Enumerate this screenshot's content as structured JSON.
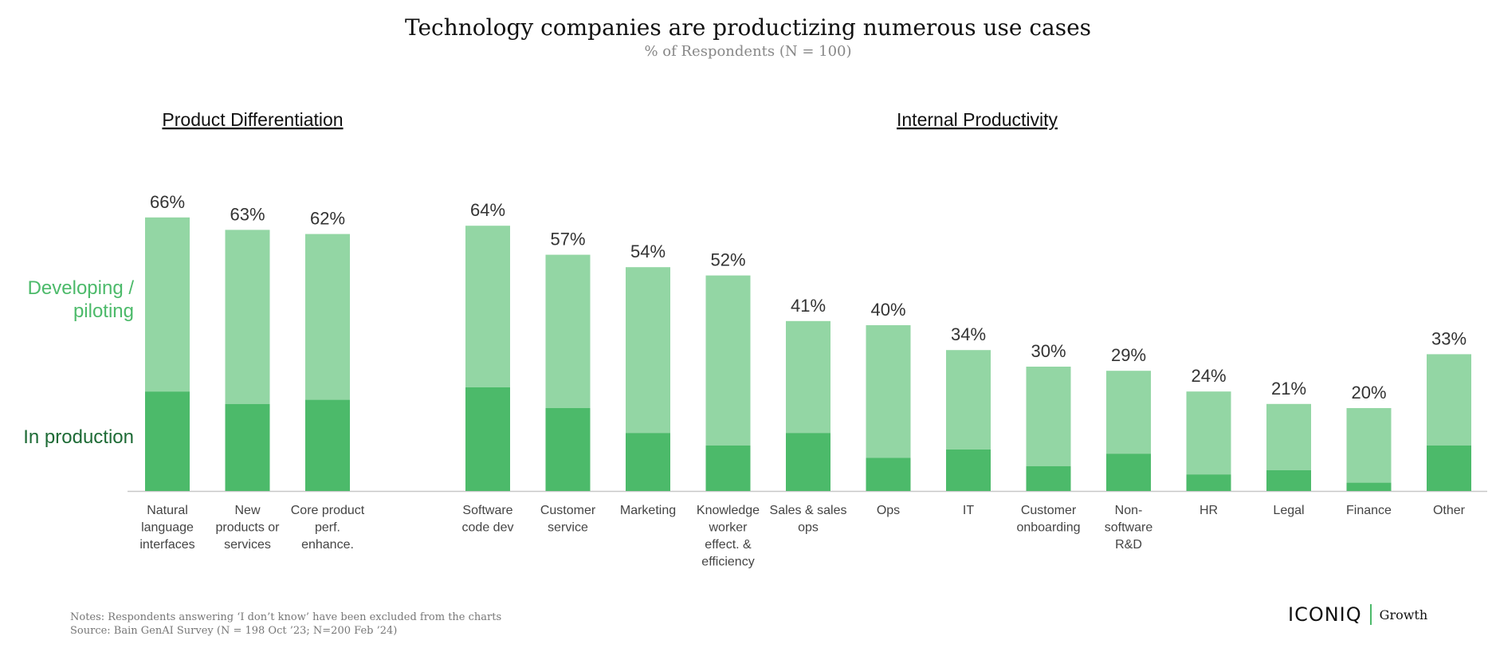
{
  "title": "Technology companies are productizing numerous use cases",
  "subtitle": "% of Respondents (N = 100)",
  "colors": {
    "developing": "#93d6a4",
    "production": "#4cba6a",
    "axis": "#c8c8c8",
    "developing_label": "#4cba6a",
    "production_label": "#1e6b36"
  },
  "legend": {
    "developing": "Developing / piloting",
    "production": "In production"
  },
  "notes": "Notes: Respondents answering ‘I don’t know’ have been excluded from the charts",
  "source": "Source: Bain GenAI Survey (N = 198 Oct ’23; N=200 Feb ’24)",
  "logo": {
    "main": "ICONIQ",
    "sub": "Growth"
  },
  "chart_data": {
    "type": "bar",
    "stacked": true,
    "ylim": [
      0,
      70
    ],
    "groups": [
      {
        "label": "Product Differentiation",
        "categories": [
          [
            "Natural",
            "language",
            "interfaces"
          ],
          [
            "New",
            "products or",
            "services"
          ],
          [
            "Core product",
            "perf.",
            "enhance."
          ]
        ],
        "totals": [
          66,
          63,
          62
        ],
        "production": [
          24,
          21,
          22
        ]
      },
      {
        "label": "Internal Productivity",
        "categories": [
          [
            "Software",
            "code dev"
          ],
          [
            "Customer",
            "service"
          ],
          [
            "Marketing"
          ],
          [
            "Knowledge",
            "worker",
            "effect. &",
            "efficiency"
          ],
          [
            "Sales & sales",
            "ops"
          ],
          [
            "Ops"
          ],
          [
            "IT"
          ],
          [
            "Customer",
            "onboarding"
          ],
          [
            "Non-",
            "software",
            "R&D"
          ],
          [
            "HR"
          ],
          [
            "Legal"
          ],
          [
            "Finance"
          ],
          [
            "Other"
          ]
        ],
        "totals": [
          64,
          57,
          54,
          52,
          41,
          40,
          34,
          30,
          29,
          24,
          21,
          20,
          33
        ],
        "production": [
          25,
          20,
          14,
          11,
          14,
          8,
          10,
          6,
          9,
          4,
          5,
          2,
          11
        ]
      }
    ],
    "series": [
      {
        "name": "Developing / piloting"
      },
      {
        "name": "In production"
      }
    ],
    "value_labels": [
      "66%",
      "63%",
      "62%",
      "64%",
      "57%",
      "54%",
      "52%",
      "41%",
      "40%",
      "34%",
      "30%",
      "29%",
      "24%",
      "21%",
      "20%",
      "33%"
    ]
  }
}
